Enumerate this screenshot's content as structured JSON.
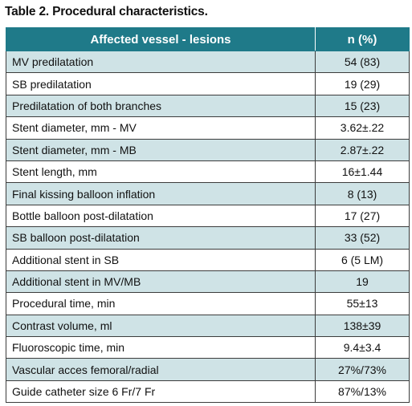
{
  "caption": "Table 2. Procedural characteristics.",
  "table": {
    "headers": [
      "Affected vessel - lesions",
      "n (%)"
    ],
    "rows": [
      [
        "MV predilatation",
        "54 (83)"
      ],
      [
        "SB predilatation",
        "19 (29)"
      ],
      [
        "Predilatation of both branches",
        "15 (23)"
      ],
      [
        "Stent diameter, mm - MV",
        "3.62±.22"
      ],
      [
        "Stent diameter, mm - MB",
        "2.87±.22"
      ],
      [
        "Stent length, mm",
        "16±1.44"
      ],
      [
        "Final kissing balloon inflation",
        "8 (13)"
      ],
      [
        "Bottle balloon post-dilatation",
        "17 (27)"
      ],
      [
        "SB balloon post-dilatation",
        "33 (52)"
      ],
      [
        "Additional stent in SB",
        "6 (5 LM)"
      ],
      [
        "Additional stent in MV/MB",
        "19"
      ],
      [
        "Procedural time, min",
        "55±13"
      ],
      [
        "Contrast volume, ml",
        "138±39"
      ],
      [
        "Fluoroscopic time, min",
        "9.4±3.4"
      ],
      [
        "Vascular acces femoral/radial",
        "27%/73%"
      ],
      [
        "Guide catheter size 6 Fr/7 Fr",
        "87%/13%"
      ]
    ]
  },
  "colors": {
    "header_bg": "#1f7a89",
    "header_text": "#ffffff",
    "row_shade": "#cfe3e6",
    "row_plain": "#ffffff",
    "border": "#3c3c3c"
  }
}
